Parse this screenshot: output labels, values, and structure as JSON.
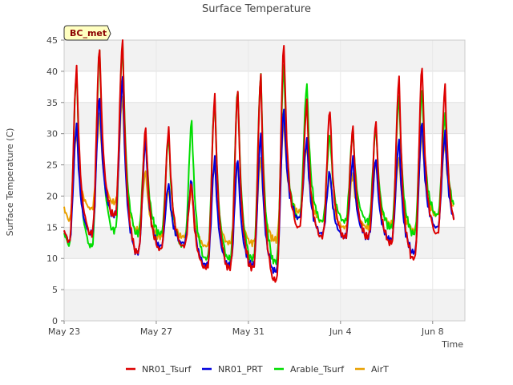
{
  "chart_data": {
    "type": "line",
    "title": "Surface Temperature",
    "xlabel": "Time",
    "ylabel": "Surface Temperature (C)",
    "badge": "BC_met",
    "ylim": [
      0,
      45
    ],
    "yticks": [
      0,
      5,
      10,
      15,
      20,
      25,
      30,
      35,
      40,
      45
    ],
    "xlim_day": [
      0,
      17.4
    ],
    "xticks": [
      {
        "label": "May 23",
        "day": 0
      },
      {
        "label": "May 27",
        "day": 4
      },
      {
        "label": "May 31",
        "day": 8
      },
      {
        "label": "Jun 4",
        "day": 12
      },
      {
        "label": "Jun 8",
        "day": 16
      }
    ],
    "grid": true,
    "legend_position": "bottom",
    "series": [
      {
        "name": "NR01_Tsurf",
        "color": "#dd0000",
        "daily_max": [
          40.5,
          43.8,
          45.0,
          31.0,
          30.8,
          22.0,
          36.0,
          37.0,
          39.5,
          44.5,
          35.0,
          34.0,
          31.0,
          32.0,
          39.0,
          41.0,
          37.5
        ],
        "daily_min": [
          12.5,
          14.0,
          17.0,
          11.0,
          11.5,
          12.0,
          8.5,
          8.5,
          8.5,
          6.5,
          15.0,
          13.5,
          13.5,
          13.5,
          12.5,
          10.0,
          14.0
        ]
      },
      {
        "name": "NR01_PRT",
        "color": "#0000dd",
        "daily_max": [
          31.5,
          36.0,
          39.0,
          29.0,
          22.0,
          22.5,
          26.0,
          26.0,
          30.0,
          34.0,
          29.0,
          24.0,
          26.0,
          26.0,
          29.0,
          32.0,
          30.0
        ],
        "daily_min": [
          12.5,
          14.0,
          17.0,
          11.0,
          12.0,
          12.5,
          9.0,
          9.0,
          9.0,
          8.0,
          16.5,
          14.0,
          13.5,
          13.5,
          13.0,
          11.0,
          15.0
        ]
      },
      {
        "name": "Arable_Tsurf",
        "color": "#00dd00",
        "daily_max": [
          40.0,
          43.5,
          44.5,
          30.0,
          29.5,
          32.0,
          35.5,
          37.0,
          39.5,
          41.0,
          38.0,
          30.0,
          30.5,
          31.0,
          36.0,
          37.0,
          33.0
        ],
        "daily_min": [
          12.0,
          12.0,
          14.5,
          14.0,
          14.0,
          12.0,
          10.0,
          10.0,
          10.0,
          9.5,
          16.5,
          16.0,
          16.0,
          16.0,
          15.0,
          14.0,
          17.0
        ]
      },
      {
        "name": "AirT",
        "color": "#e8a000",
        "daily_max": [
          30.0,
          33.0,
          36.0,
          24.0,
          21.0,
          21.0,
          25.0,
          25.5,
          26.0,
          32.0,
          28.0,
          23.5,
          23.5,
          25.5,
          26.0,
          30.0,
          28.5
        ],
        "daily_min": [
          16.0,
          18.0,
          19.0,
          14.5,
          13.5,
          13.5,
          12.0,
          12.5,
          12.5,
          13.0,
          17.5,
          16.0,
          15.0,
          15.0,
          15.5,
          14.5,
          17.0
        ]
      }
    ]
  }
}
